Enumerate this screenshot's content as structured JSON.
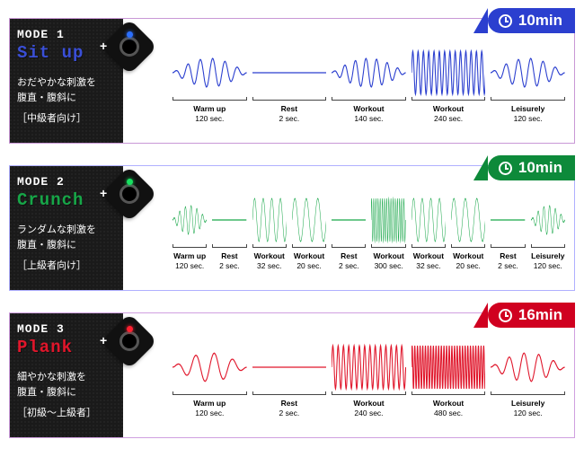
{
  "modes": [
    {
      "mode_label": "MODE 1",
      "mode_bracket": "1",
      "exercise": "Sit up",
      "desc_jp": "おだやかな刺激を\n腹直・腹斜に",
      "level_jp": "［中級者向け］",
      "duration": "10min",
      "accent": "#2b3fcf",
      "accent_text": "#3a4fd6",
      "led": "#2b6fff",
      "badge_bg": "#2b3fcf",
      "border": "#c998d6",
      "segments": [
        {
          "label": "Warm up",
          "sec": "120 sec.",
          "weight": 18,
          "amp": "mid",
          "freq": 6
        },
        {
          "label": "Rest",
          "sec": "2 sec.",
          "weight": 4,
          "amp": "flat",
          "freq": 0
        },
        {
          "label": "Workout",
          "sec": "140 sec.",
          "weight": 20,
          "amp": "mid",
          "freq": 7
        },
        {
          "label": "Workout",
          "sec": "240 sec.",
          "weight": 34,
          "amp": "high",
          "freq": 14
        },
        {
          "label": "Leisurely",
          "sec": "120 sec.",
          "weight": 18,
          "amp": "mid",
          "freq": 6
        }
      ]
    },
    {
      "mode_label": "MODE 2",
      "mode_bracket": "2",
      "exercise": "Crunch",
      "desc_jp": "ランダムな刺激を\n腹直・腹斜に",
      "level_jp": "［上級者向け］",
      "duration": "10min",
      "accent": "#17a648",
      "accent_text": "#17a648",
      "led": "#17e060",
      "badge_bg": "#0d8a3a",
      "border": "#b0b0ff",
      "segments": [
        {
          "label": "Warm up",
          "sec": "120 sec.",
          "weight": 13,
          "amp": "mid",
          "freq": 6
        },
        {
          "label": "Rest",
          "sec": "2 sec.",
          "weight": 3,
          "amp": "flat",
          "freq": 0
        },
        {
          "label": "Workout",
          "sec": "32 sec.",
          "weight": 6,
          "amp": "high",
          "freq": 4
        },
        {
          "label": "Workout",
          "sec": "20 sec.",
          "weight": 5,
          "amp": "high",
          "freq": 3
        },
        {
          "label": "Rest",
          "sec": "2 sec.",
          "weight": 3,
          "amp": "flat",
          "freq": 0
        },
        {
          "label": "Workout",
          "sec": "300 sec.",
          "weight": 28,
          "amp": "high",
          "freq": 16
        },
        {
          "label": "Workout",
          "sec": "32 sec.",
          "weight": 6,
          "amp": "high",
          "freq": 4
        },
        {
          "label": "Workout",
          "sec": "20 sec.",
          "weight": 5,
          "amp": "high",
          "freq": 3
        },
        {
          "label": "Rest",
          "sec": "2 sec.",
          "weight": 3,
          "amp": "flat",
          "freq": 0
        },
        {
          "label": "Leisurely",
          "sec": "120 sec.",
          "weight": 13,
          "amp": "mid",
          "freq": 6
        }
      ]
    },
    {
      "mode_label": "MODE 3",
      "mode_bracket": "3",
      "exercise": "Plank",
      "desc_jp": "細やかな刺激を\n腹直・腹斜に",
      "level_jp": "［初級～上級者］",
      "duration": "16min",
      "accent": "#e0162b",
      "accent_text": "#e0162b",
      "led": "#ff2030",
      "badge_bg": "#d00020",
      "border": "#d0a0e0",
      "segments": [
        {
          "label": "Warm up",
          "sec": "120 sec.",
          "weight": 10,
          "amp": "mid",
          "freq": 4
        },
        {
          "label": "Rest",
          "sec": "2 sec.",
          "weight": 3,
          "amp": "flat",
          "freq": 0
        },
        {
          "label": "Workout",
          "sec": "240 sec.",
          "weight": 22,
          "amp": "high",
          "freq": 14
        },
        {
          "label": "Workout",
          "sec": "480 sec.",
          "weight": 40,
          "amp": "high",
          "freq": 28
        },
        {
          "label": "Leisurely",
          "sec": "120 sec.",
          "weight": 10,
          "amp": "mid",
          "freq": 5
        }
      ]
    }
  ]
}
